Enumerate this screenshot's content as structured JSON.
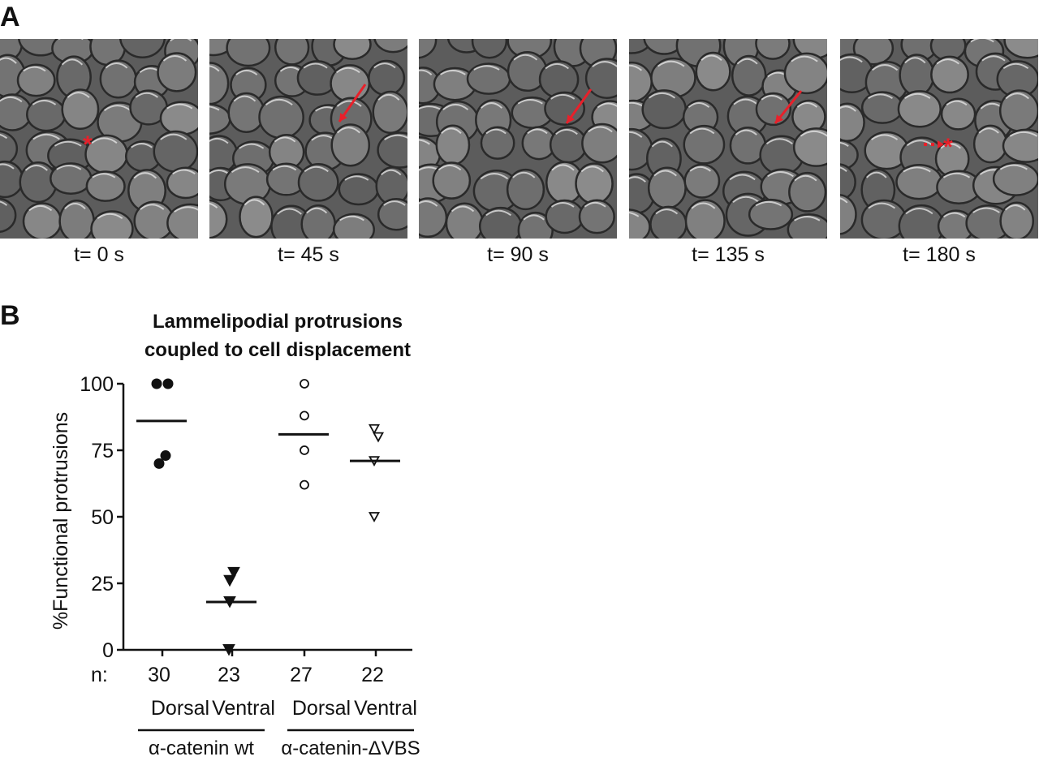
{
  "panels": {
    "a_label": "A",
    "b_label": "B"
  },
  "frames": [
    {
      "time": "t= 0 s",
      "marker": "asterisk"
    },
    {
      "time": "t= 45 s",
      "marker": "arrow"
    },
    {
      "time": "t= 90 s",
      "marker": "arrow"
    },
    {
      "time": "t= 135 s",
      "marker": "arrow"
    },
    {
      "time": "t= 180 s",
      "marker": "dotted-arrow-asterisk"
    }
  ],
  "marker_color": "#e8202a",
  "chart_data": {
    "type": "scatter",
    "title": "Lammelipodial protrusions\ncoupled to cell displacement",
    "ylabel": "%Functional protrusions",
    "ylim": [
      0,
      100
    ],
    "yticks": [
      0,
      25,
      50,
      75,
      100
    ],
    "n_label": "n:",
    "categories": [
      "Dorsal",
      "Ventral",
      "Dorsal",
      "Ventral"
    ],
    "n": [
      "30",
      "23",
      "27",
      "22"
    ],
    "groups": [
      {
        "label": "α-catenin wt",
        "categories": [
          0,
          1
        ]
      },
      {
        "label": "α-catenin-ΔVBS",
        "categories": [
          2,
          3
        ]
      }
    ],
    "series": [
      {
        "marker": "filled-circle",
        "values": [
          100,
          100,
          70,
          73
        ],
        "mean": 86
      },
      {
        "marker": "filled-triangle-down",
        "values": [
          29,
          26,
          18,
          0
        ],
        "mean": 18
      },
      {
        "marker": "open-circle",
        "values": [
          100,
          88,
          75,
          62
        ],
        "mean": 81
      },
      {
        "marker": "open-triangle-down",
        "values": [
          83,
          80,
          71,
          50
        ],
        "mean": 71
      }
    ]
  }
}
